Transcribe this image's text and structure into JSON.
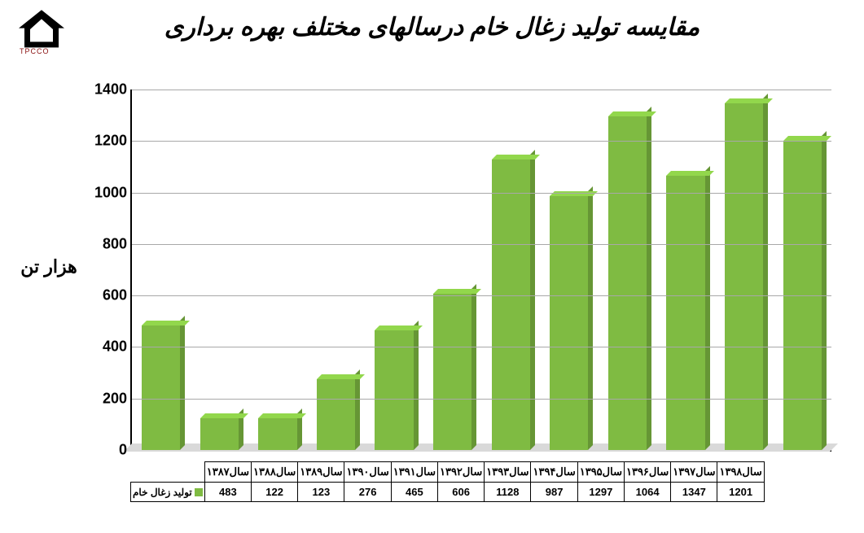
{
  "logo": {
    "text": "TPCCO",
    "arc_color": "#000000",
    "text_color": "#8a1010"
  },
  "title": "مقایسه تولید زغال خام درسالهای مختلف بهره برداری",
  "ylabel": "هزار تن",
  "chart": {
    "type": "bar",
    "categories": [
      "سال۱۳۸۷",
      "سال۱۳۸۸",
      "سال۱۳۸۹",
      "سال۱۳۹۰",
      "سال۱۳۹۱",
      "سال۱۳۹۲",
      "سال۱۳۹۳",
      "سال۱۳۹۴",
      "سال۱۳۹۵",
      "سال۱۳۹۶",
      "سال۱۳۹۷",
      "سال۱۳۹۸"
    ],
    "values": [
      483,
      122,
      123,
      276,
      465,
      606,
      1128,
      987,
      1297,
      1064,
      1347,
      1201
    ],
    "series_name": "تولید  زغال خام",
    "bar_color": "#7fbb42",
    "ylim": [
      0,
      1400
    ],
    "ytick_step": 200,
    "grid_color": "#a8a8a8",
    "background_color": "#ffffff",
    "label_fontsize": 13,
    "tick_fontsize": 18,
    "title_fontsize": 30,
    "ylabel_fontsize": 22,
    "bar_width": 0.66,
    "depth_3d": 6
  }
}
